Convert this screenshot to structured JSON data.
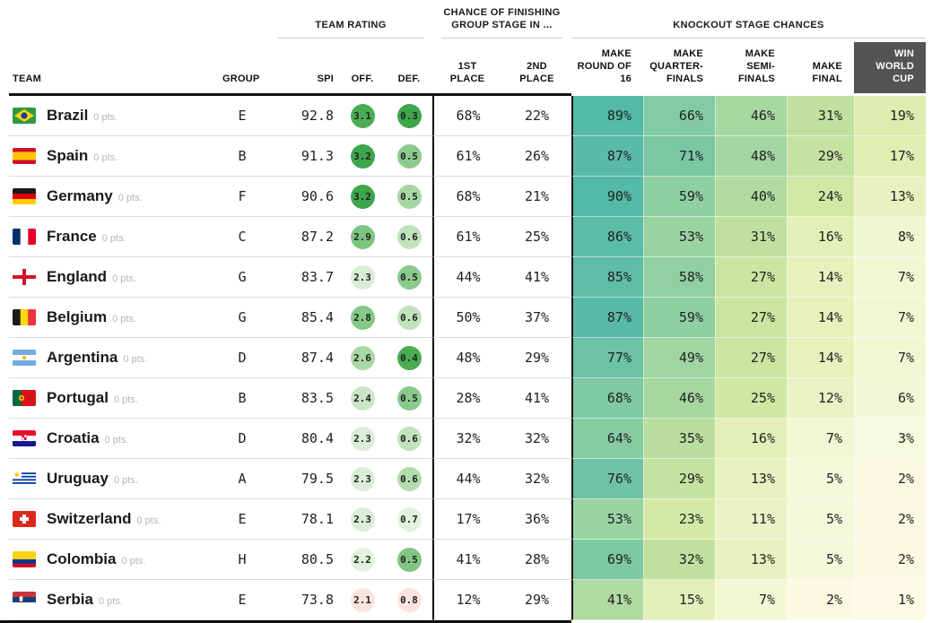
{
  "header": {
    "team": "TEAM",
    "group": "GROUP",
    "team_rating_label": "TEAM RATING",
    "finishing_label": "CHANCE OF FINISHING GROUP STAGE IN ...",
    "knockout_label": "KNOCKOUT STAGE CHANCES",
    "spi": "SPI",
    "off": "OFF.",
    "def": "DEF.",
    "first_place": "1ST PLACE",
    "second_place": "2ND PLACE",
    "knockout_cols": [
      "MAKE ROUND OF 16",
      "MAKE QUARTER-FINALS",
      "MAKE SEMI-FINALS",
      "MAKE FINAL",
      "WIN WORLD CUP"
    ]
  },
  "colors": {
    "win_header_bg": "#545454",
    "header_rule": "#111111",
    "heat_stops": [
      [
        0,
        "#fdfce9"
      ],
      [
        5,
        "#f5f8da"
      ],
      [
        10,
        "#edf4c9"
      ],
      [
        15,
        "#e4f0ba"
      ],
      [
        20,
        "#dbecac"
      ],
      [
        25,
        "#cfe7a3"
      ],
      [
        30,
        "#c3e19f"
      ],
      [
        40,
        "#b1dba0"
      ],
      [
        50,
        "#9fd5a2"
      ],
      [
        60,
        "#8dcfa3"
      ],
      [
        70,
        "#7bc8a4"
      ],
      [
        80,
        "#66c0a6"
      ],
      [
        90,
        "#53b9a8"
      ],
      [
        100,
        "#41b2aa"
      ]
    ]
  },
  "chart_data": {
    "type": "table",
    "columns": [
      "TEAM",
      "GROUP",
      "SPI",
      "OFF.",
      "DEF.",
      "1ST PLACE",
      "2ND PLACE",
      "MAKE ROUND OF 16",
      "MAKE QUARTER-FINALS",
      "MAKE SEMI-FINALS",
      "MAKE FINAL",
      "WIN WORLD CUP"
    ],
    "rows": [
      {
        "team": "Brazil",
        "flag": "brazil",
        "pts": "0 pts.",
        "group": "E",
        "spi": "92.8",
        "off": "3.1",
        "off_color": "#4bad53",
        "def": "0.3",
        "def_color": "#3da64b",
        "first": "68%",
        "second": "22%",
        "knockout": [
          "89%",
          "66%",
          "46%",
          "31%",
          "19%"
        ]
      },
      {
        "team": "Spain",
        "flag": "spain",
        "pts": "0 pts.",
        "group": "B",
        "spi": "91.3",
        "off": "3.2",
        "off_color": "#3da64b",
        "def": "0.5",
        "def_color": "#8bca8d",
        "first": "61%",
        "second": "26%",
        "knockout": [
          "87%",
          "71%",
          "48%",
          "29%",
          "17%"
        ]
      },
      {
        "team": "Germany",
        "flag": "germany",
        "pts": "0 pts.",
        "group": "F",
        "spi": "90.6",
        "off": "3.2",
        "off_color": "#3da64b",
        "def": "0.5",
        "def_color": "#a5d6a3",
        "first": "68%",
        "second": "21%",
        "knockout": [
          "90%",
          "59%",
          "40%",
          "24%",
          "13%"
        ]
      },
      {
        "team": "France",
        "flag": "france",
        "pts": "0 pts.",
        "group": "C",
        "spi": "87.2",
        "off": "2.9",
        "off_color": "#7dc481",
        "def": "0.6",
        "def_color": "#c0e2bc",
        "first": "61%",
        "second": "25%",
        "knockout": [
          "86%",
          "53%",
          "31%",
          "16%",
          "8%"
        ]
      },
      {
        "team": "England",
        "flag": "england",
        "pts": "0 pts.",
        "group": "G",
        "spi": "83.7",
        "off": "2.3",
        "off_color": "#d9eed5",
        "def": "0.5",
        "def_color": "#8bca8d",
        "first": "44%",
        "second": "41%",
        "knockout": [
          "85%",
          "58%",
          "27%",
          "14%",
          "7%"
        ]
      },
      {
        "team": "Belgium",
        "flag": "belgium",
        "pts": "0 pts.",
        "group": "G",
        "spi": "85.4",
        "off": "2.8",
        "off_color": "#85c888",
        "def": "0.6",
        "def_color": "#c0e2bc",
        "first": "50%",
        "second": "37%",
        "knockout": [
          "87%",
          "59%",
          "27%",
          "14%",
          "7%"
        ]
      },
      {
        "team": "Argentina",
        "flag": "argentina",
        "pts": "0 pts.",
        "group": "D",
        "spi": "87.4",
        "off": "2.6",
        "off_color": "#a8d8a5",
        "def": "0.4",
        "def_color": "#4bad53",
        "first": "48%",
        "second": "29%",
        "knockout": [
          "77%",
          "49%",
          "27%",
          "14%",
          "7%"
        ]
      },
      {
        "team": "Portugal",
        "flag": "portugal",
        "pts": "0 pts.",
        "group": "B",
        "spi": "83.5",
        "off": "2.4",
        "off_color": "#c9e7c4",
        "def": "0.5",
        "def_color": "#8bca8d",
        "first": "28%",
        "second": "41%",
        "knockout": [
          "68%",
          "46%",
          "25%",
          "12%",
          "6%"
        ]
      },
      {
        "team": "Croatia",
        "flag": "croatia",
        "pts": "0 pts.",
        "group": "D",
        "spi": "80.4",
        "off": "2.3",
        "off_color": "#d9eed5",
        "def": "0.6",
        "def_color": "#c0e2bc",
        "first": "32%",
        "second": "32%",
        "knockout": [
          "64%",
          "35%",
          "16%",
          "7%",
          "3%"
        ]
      },
      {
        "team": "Uruguay",
        "flag": "uruguay",
        "pts": "0 pts.",
        "group": "A",
        "spi": "79.5",
        "off": "2.3",
        "off_color": "#d9eed5",
        "def": "0.6",
        "def_color": "#b3dcae",
        "first": "44%",
        "second": "32%",
        "knockout": [
          "76%",
          "29%",
          "13%",
          "5%",
          "2%"
        ]
      },
      {
        "team": "Switzerland",
        "flag": "switzerland",
        "pts": "0 pts.",
        "group": "E",
        "spi": "78.1",
        "off": "2.3",
        "off_color": "#d9eed5",
        "def": "0.7",
        "def_color": "#e3f2dc",
        "first": "17%",
        "second": "36%",
        "knockout": [
          "53%",
          "23%",
          "11%",
          "5%",
          "2%"
        ]
      },
      {
        "team": "Colombia",
        "flag": "colombia",
        "pts": "0 pts.",
        "group": "H",
        "spi": "80.5",
        "off": "2.2",
        "off_color": "#e3f2dc",
        "def": "0.5",
        "def_color": "#82c685",
        "first": "41%",
        "second": "28%",
        "knockout": [
          "69%",
          "32%",
          "13%",
          "5%",
          "2%"
        ]
      },
      {
        "team": "Serbia",
        "flag": "serbia",
        "pts": "0 pts.",
        "group": "E",
        "spi": "73.8",
        "off": "2.1",
        "off_color": "#fbe4de",
        "def": "0.8",
        "def_color": "#fbe4de",
        "first": "12%",
        "second": "29%",
        "knockout": [
          "41%",
          "15%",
          "7%",
          "2%",
          "1%"
        ]
      }
    ]
  }
}
